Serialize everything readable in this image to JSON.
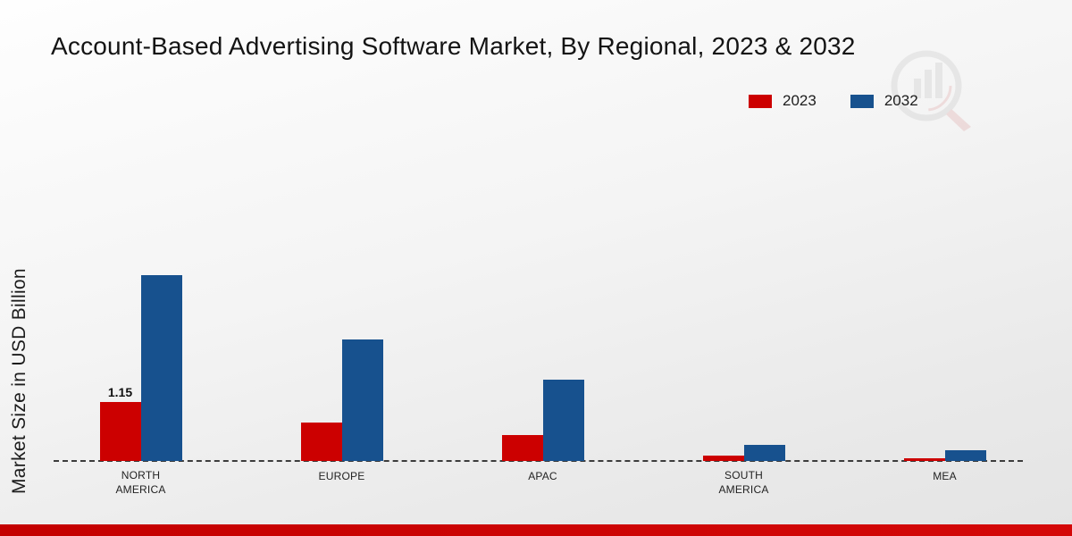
{
  "title": "Account-Based Advertising Software Market, By Regional, 2023 & 2032",
  "ylabel": "Market Size in USD Billion",
  "legend": [
    {
      "label": "2023",
      "color": "#cc0000"
    },
    {
      "label": "2032",
      "color": "#17518e"
    }
  ],
  "chart_data": {
    "type": "bar",
    "title": "Account-Based Advertising Software Market, By Regional, 2023 & 2032",
    "xlabel": "",
    "ylabel": "Market Size in USD Billion",
    "categories": [
      "NORTH AMERICA",
      "EUROPE",
      "APAC",
      "SOUTH AMERICA",
      "MEA"
    ],
    "series": [
      {
        "name": "2023",
        "color": "#cc0000",
        "values": [
          1.15,
          0.75,
          0.5,
          0.1,
          0.05
        ]
      },
      {
        "name": "2032",
        "color": "#17518e",
        "values": [
          3.6,
          2.35,
          1.58,
          0.32,
          0.2
        ]
      }
    ],
    "ylim": [
      0,
      4
    ],
    "grid": false,
    "legend_position": "top-right",
    "baseline_style": "dashed",
    "data_labels": [
      {
        "series": "2023",
        "category": "NORTH AMERICA",
        "text": "1.15"
      }
    ]
  },
  "watermark": {
    "name": "market-research-logo"
  }
}
